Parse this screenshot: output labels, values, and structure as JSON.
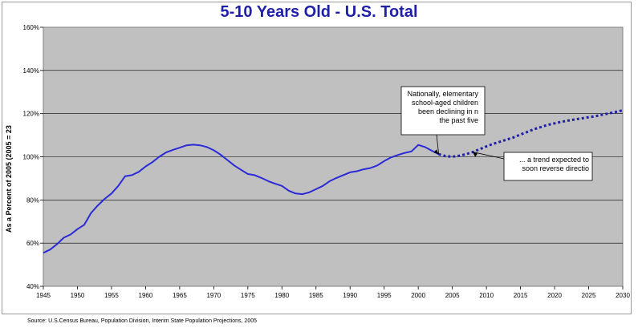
{
  "chart_data": {
    "type": "line",
    "title": "5-10 Years Old - U.S. Total",
    "ylabel": "As a Percent of 2005  (2005 = 23",
    "xlabel": "",
    "xlim": [
      1945,
      2030
    ],
    "ylim": [
      40,
      160
    ],
    "x_ticks": [
      "1945",
      "1950",
      "1955",
      "1960",
      "1965",
      "1970",
      "1975",
      "1980",
      "1985",
      "1990",
      "1995",
      "2000",
      "2005",
      "2010",
      "2015",
      "2020",
      "2025",
      "2030"
    ],
    "y_ticks": [
      "40%",
      "60%",
      "80%",
      "100%",
      "120%",
      "140%",
      "160%"
    ],
    "grid": true,
    "series": [
      {
        "style": "solid",
        "color": "#2a2ad6",
        "x": [
          1945,
          1946,
          1947,
          1948,
          1949,
          1950,
          1951,
          1952,
          1953,
          1954,
          1955,
          1956,
          1957,
          1958,
          1959,
          1960,
          1961,
          1962,
          1963,
          1964,
          1965,
          1966,
          1967,
          1968,
          1969,
          1970,
          1971,
          1972,
          1973,
          1974,
          1975,
          1976,
          1977,
          1978,
          1979,
          1980,
          1981,
          1982,
          1983,
          1984,
          1985,
          1986,
          1987,
          1988,
          1989,
          1990,
          1991,
          1992,
          1993,
          1994,
          1995,
          1996,
          1997,
          1998,
          1999,
          2000,
          2001,
          2002,
          2003
        ],
        "y": [
          55.5,
          57,
          59.5,
          62.5,
          64,
          66.5,
          68.5,
          74,
          77.5,
          80.5,
          83,
          86.5,
          91,
          91.5,
          93,
          95.5,
          97.5,
          100,
          102,
          103.2,
          104.2,
          105.3,
          105.6,
          105.3,
          104.5,
          103,
          101,
          98.5,
          96,
          94,
          92,
          91.5,
          90.2,
          88.7,
          87.5,
          86.5,
          84.3,
          83,
          82.7,
          83.5,
          85,
          86.5,
          88.7,
          90.2,
          91.5,
          92.8,
          93.3,
          94.2,
          94.8,
          96,
          98,
          99.7,
          100.8,
          101.8,
          102.5,
          105.5,
          104.5,
          102.8,
          101.2
        ]
      },
      {
        "style": "dotted",
        "color": "#1f1fa8",
        "x": [
          2003,
          2004,
          2005,
          2006,
          2007,
          2008,
          2009,
          2010,
          2011,
          2012,
          2013,
          2014,
          2015,
          2016,
          2017,
          2018,
          2019,
          2020,
          2021,
          2022,
          2023,
          2024,
          2025,
          2026,
          2027,
          2028,
          2029,
          2030
        ],
        "y": [
          101.2,
          100.3,
          100,
          100.5,
          101.2,
          102.2,
          103.5,
          104.8,
          106,
          107,
          108,
          109,
          110.3,
          111.5,
          112.8,
          113.8,
          114.8,
          115.5,
          116.2,
          116.8,
          117.3,
          117.8,
          118.3,
          118.8,
          119.5,
          120.1,
          120.8,
          121.5
        ]
      }
    ],
    "annotations": [
      {
        "lines": [
          "Nationally, elementary",
          "school-aged children",
          "been declining in n",
          "the past five"
        ],
        "points_to": [
          2003,
          101.2
        ]
      },
      {
        "lines": [
          "... a trend expected to",
          "soon reverse directio"
        ],
        "points_to": [
          2008,
          102.2
        ]
      }
    ],
    "source": "Source: U.S.Census Bureau, Population Division, Interim State Population Projections, 2005"
  }
}
